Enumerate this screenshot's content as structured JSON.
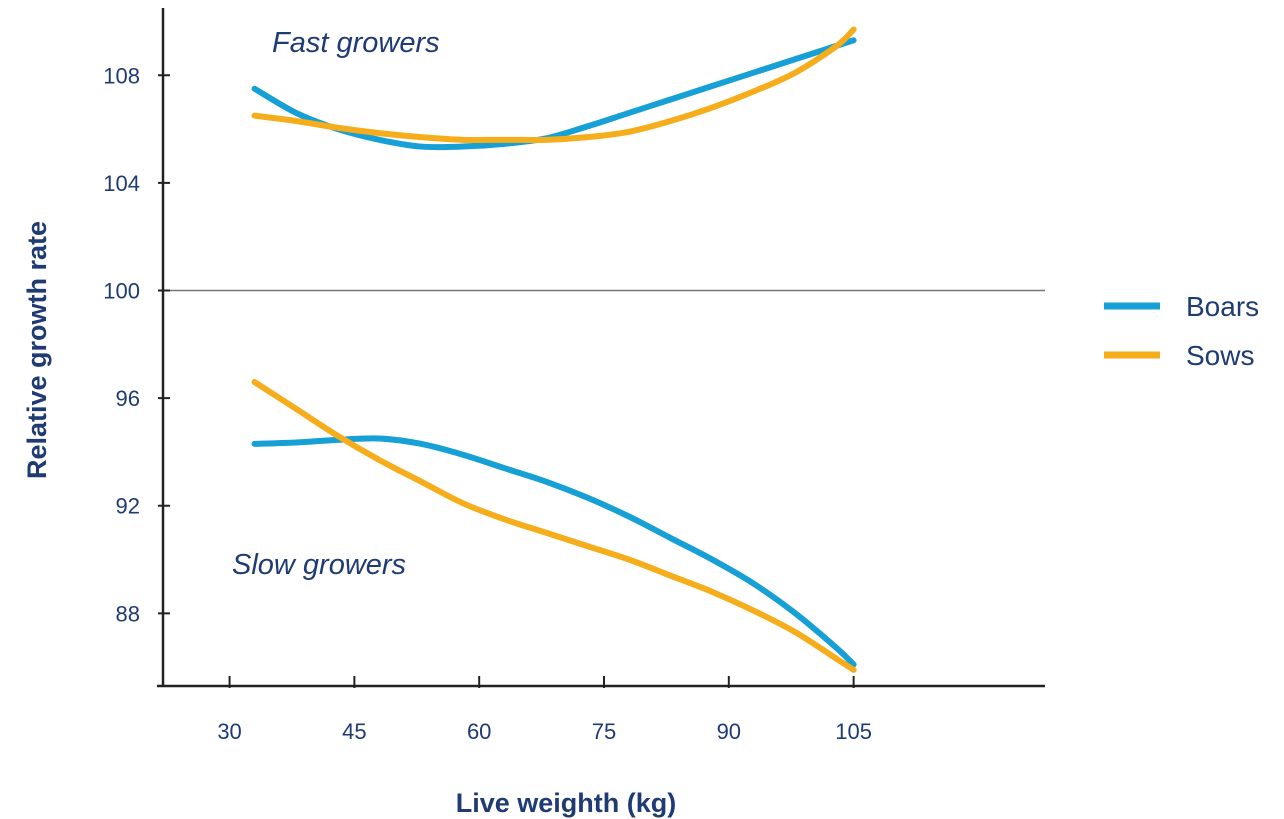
{
  "chart_data": {
    "type": "line",
    "title": "",
    "xlabel": "Live weighth (kg)",
    "ylabel": "Relative growth rate",
    "xlim": [
      22,
      128
    ],
    "ylim": [
      85.3,
      110.5
    ],
    "x_ticks": [
      30,
      45,
      60,
      75,
      90,
      105
    ],
    "y_ticks": [
      88,
      92,
      96,
      100,
      104,
      108
    ],
    "reference_line": 100,
    "grid": false,
    "legend": "right",
    "annotations": [
      "Fast growers",
      "Slow growers"
    ],
    "series": [
      {
        "name": "Boars",
        "color": "#17a0d6",
        "curves": [
          {
            "group": "Fast growers",
            "x": [
              33,
              38,
              43,
              48,
              53,
              58,
              63,
              68,
              73,
              78,
              83,
              88,
              93,
              98,
              103,
              105
            ],
            "y": [
              107.5,
              106.6,
              106.0,
              105.6,
              105.35,
              105.35,
              105.45,
              105.65,
              106.1,
              106.6,
              107.1,
              107.6,
              108.1,
              108.6,
              109.1,
              109.3
            ]
          },
          {
            "group": "Slow growers",
            "x": [
              33,
              38,
              43,
              48,
              53,
              58,
              63,
              68,
              73,
              78,
              83,
              88,
              93,
              98,
              103,
              105
            ],
            "y": [
              94.3,
              94.35,
              94.45,
              94.5,
              94.3,
              93.9,
              93.4,
              92.9,
              92.3,
              91.6,
              90.8,
              90.0,
              89.1,
              88.0,
              86.7,
              86.1
            ]
          }
        ]
      },
      {
        "name": "Sows",
        "color": "#f5ad1b",
        "curves": [
          {
            "group": "Fast growers",
            "x": [
              33,
              38,
              43,
              48,
              53,
              58,
              63,
              68,
              73,
              78,
              83,
              88,
              93,
              98,
              103,
              105
            ],
            "y": [
              106.5,
              106.3,
              106.05,
              105.85,
              105.7,
              105.6,
              105.6,
              105.6,
              105.7,
              105.9,
              106.3,
              106.8,
              107.4,
              108.1,
              109.1,
              109.7
            ]
          },
          {
            "group": "Slow growers",
            "x": [
              33,
              38,
              43,
              48,
              53,
              58,
              63,
              68,
              73,
              78,
              83,
              88,
              93,
              98,
              103,
              105
            ],
            "y": [
              96.6,
              95.6,
              94.6,
              93.7,
              92.9,
              92.1,
              91.5,
              91.0,
              90.5,
              90.0,
              89.4,
              88.8,
              88.1,
              87.3,
              86.3,
              85.9
            ]
          }
        ]
      }
    ]
  }
}
